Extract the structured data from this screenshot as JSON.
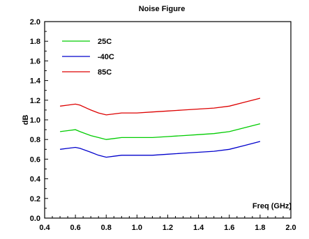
{
  "chart_data": {
    "type": "line",
    "title": "Noise Figure",
    "xlabel": "Freq (GHz)",
    "ylabel": "dB",
    "xlim": [
      0.4,
      2.0
    ],
    "ylim": [
      0.0,
      2.0
    ],
    "x_ticks": [
      "0.4",
      "0.6",
      "0.8",
      "1.0",
      "1.2",
      "1.4",
      "1.6",
      "1.8",
      "2.0"
    ],
    "y_ticks": [
      "0.0",
      "0.2",
      "0.4",
      "0.6",
      "0.8",
      "1.0",
      "1.2",
      "1.4",
      "1.6",
      "1.8",
      "2.0"
    ],
    "grid": false,
    "legend_position": "top-left",
    "series": [
      {
        "name": "25C",
        "color": "#00cc00",
        "x": [
          0.5,
          0.55,
          0.6,
          0.63,
          0.7,
          0.75,
          0.8,
          0.85,
          0.9,
          1.0,
          1.1,
          1.2,
          1.3,
          1.4,
          1.5,
          1.6,
          1.7,
          1.8
        ],
        "y": [
          0.88,
          0.89,
          0.9,
          0.88,
          0.84,
          0.82,
          0.8,
          0.81,
          0.82,
          0.82,
          0.82,
          0.83,
          0.84,
          0.85,
          0.86,
          0.88,
          0.92,
          0.96
        ]
      },
      {
        "name": "-40C",
        "color": "#0000cc",
        "x": [
          0.5,
          0.55,
          0.6,
          0.63,
          0.7,
          0.75,
          0.8,
          0.85,
          0.9,
          1.0,
          1.1,
          1.2,
          1.3,
          1.4,
          1.5,
          1.6,
          1.7,
          1.8
        ],
        "y": [
          0.7,
          0.71,
          0.72,
          0.71,
          0.67,
          0.64,
          0.62,
          0.63,
          0.64,
          0.64,
          0.64,
          0.65,
          0.66,
          0.67,
          0.68,
          0.7,
          0.74,
          0.78
        ]
      },
      {
        "name": "85C",
        "color": "#dd0000",
        "x": [
          0.5,
          0.55,
          0.6,
          0.63,
          0.7,
          0.75,
          0.8,
          0.85,
          0.9,
          1.0,
          1.1,
          1.2,
          1.3,
          1.4,
          1.5,
          1.6,
          1.7,
          1.8
        ],
        "y": [
          1.14,
          1.15,
          1.16,
          1.15,
          1.1,
          1.07,
          1.05,
          1.06,
          1.07,
          1.07,
          1.08,
          1.09,
          1.1,
          1.11,
          1.12,
          1.14,
          1.18,
          1.22
        ]
      }
    ]
  }
}
